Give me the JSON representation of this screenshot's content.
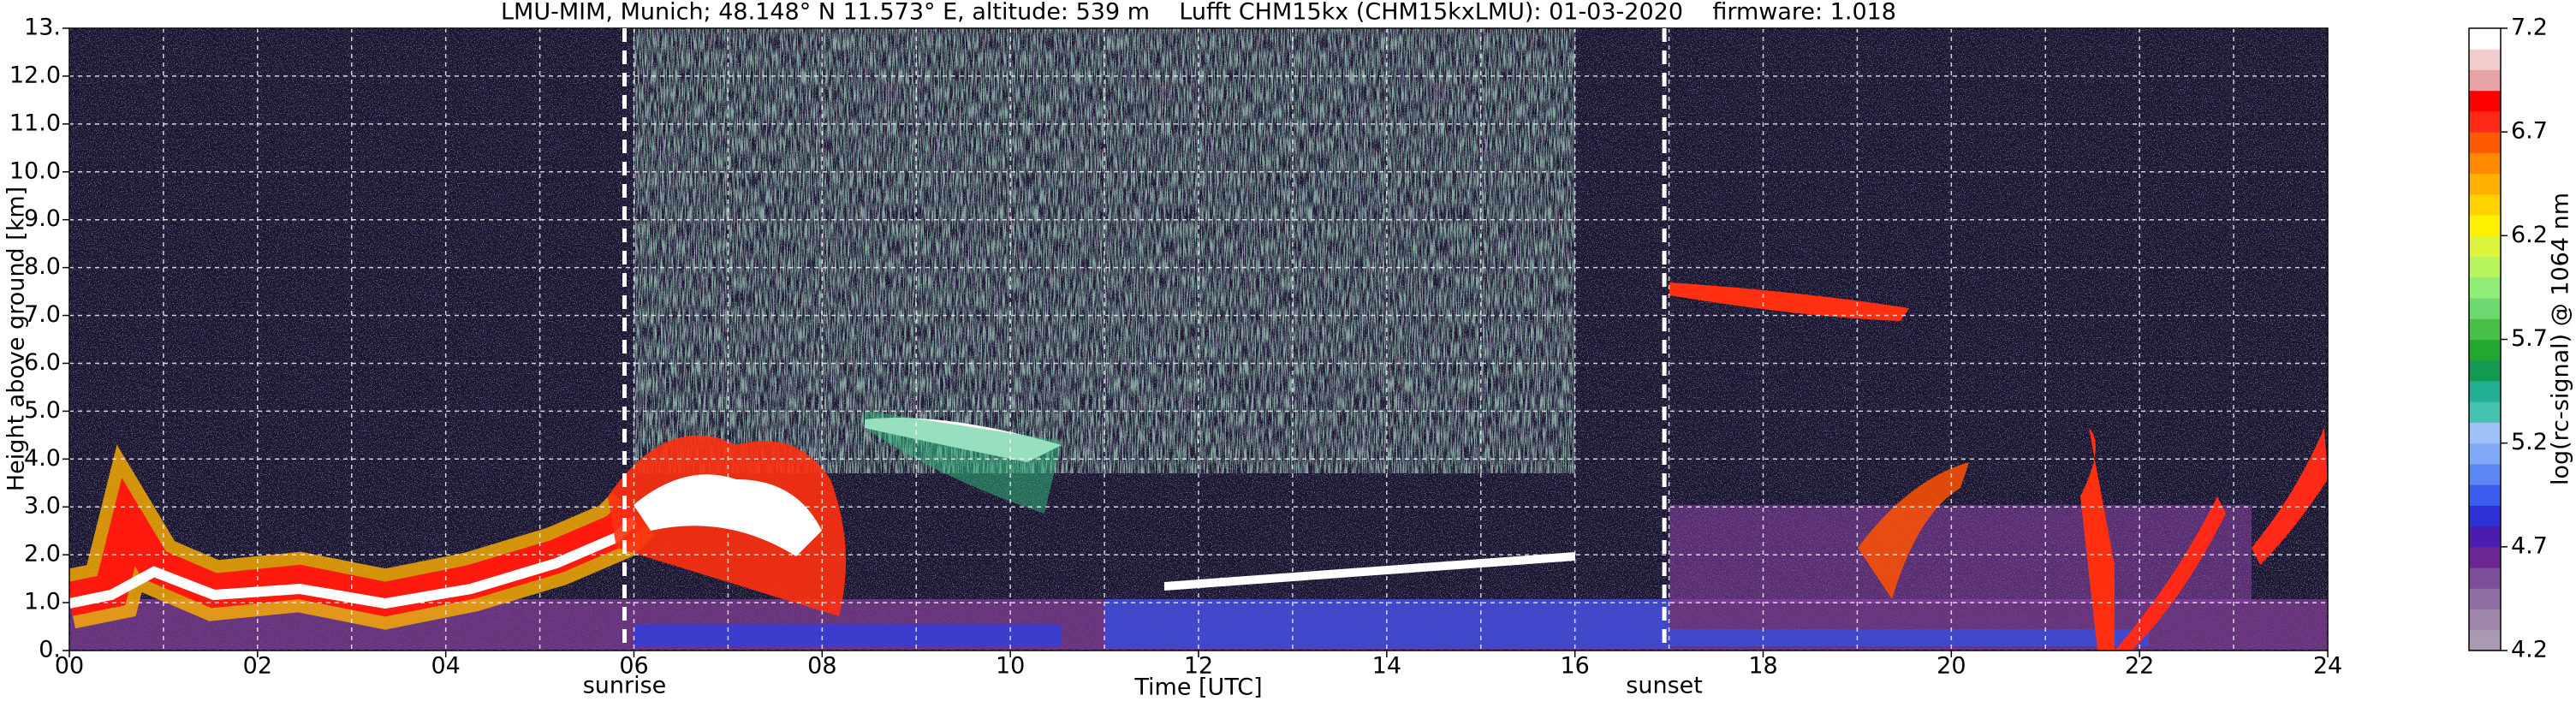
{
  "chart_data": {
    "type": "heatmap",
    "title": "LMU-MIM, Munich; 48.148° N 11.573° E, altitude: 539 m    Lufft CHM15kx (CHM15kxLMU): 01-03-2020    firmware: 1.018",
    "x_label": "Time [UTC]",
    "y_label": "Height above ground [km]",
    "xlim": [
      0,
      24
    ],
    "xticks": [
      {
        "value": 0,
        "label": "00"
      },
      {
        "value": 2,
        "label": "02"
      },
      {
        "value": 4,
        "label": "04"
      },
      {
        "value": 6,
        "label": "06"
      },
      {
        "value": 8,
        "label": "08"
      },
      10,
      12,
      14,
      16,
      18,
      20,
      22,
      24
    ],
    "ylim": [
      0,
      13
    ],
    "yticks": [
      {
        "value": 0,
        "label": "0."
      },
      {
        "value": 1,
        "label": "1.0"
      },
      {
        "value": 2,
        "label": "2.0"
      },
      {
        "value": 3,
        "label": "3.0"
      },
      {
        "value": 4,
        "label": "4.0"
      },
      {
        "value": 5,
        "label": "5.0"
      },
      {
        "value": 6,
        "label": "6.0"
      },
      {
        "value": 7,
        "label": "7.0"
      },
      {
        "value": 8,
        "label": "8.0"
      },
      {
        "value": 9,
        "label": "9.0"
      },
      {
        "value": 10,
        "label": "10.0"
      },
      {
        "value": 11,
        "label": "11.0"
      },
      {
        "value": 12,
        "label": "12.0"
      },
      {
        "value": 13,
        "label": "13."
      }
    ],
    "xgrid": [
      0,
      1,
      2,
      3,
      4,
      5,
      6,
      7,
      8,
      9,
      10,
      11,
      12,
      13,
      14,
      15,
      16,
      17,
      18,
      19,
      20,
      21,
      22,
      23,
      24
    ],
    "grid": true,
    "annotations": [
      {
        "text": "sunrise",
        "x": 5.9
      },
      {
        "text": "sunset",
        "x": 16.95
      }
    ],
    "colorbar": {
      "label": "log(rc-signal) @ 1064 nm",
      "lim": [
        4.2,
        7.2
      ],
      "ticks": [
        4.2,
        4.7,
        5.2,
        5.7,
        6.2,
        6.7,
        7.2
      ],
      "colors": [
        "#a99ab2",
        "#9d86aa",
        "#8e6ea2",
        "#7c4e9a",
        "#6a2692",
        "#4a1cb0",
        "#2e30d8",
        "#3c5cf0",
        "#5c86f4",
        "#82a8f8",
        "#a0c0f8",
        "#44c4b0",
        "#22b094",
        "#129a50",
        "#22a830",
        "#48c048",
        "#70d870",
        "#92ec78",
        "#b8f45c",
        "#dcf43c",
        "#fff000",
        "#ffd200",
        "#ffb000",
        "#ff8a00",
        "#ff5a00",
        "#ff2a18",
        "#ff0000",
        "#e8a4a4",
        "#f2cccc",
        "#ffffff"
      ]
    }
  }
}
